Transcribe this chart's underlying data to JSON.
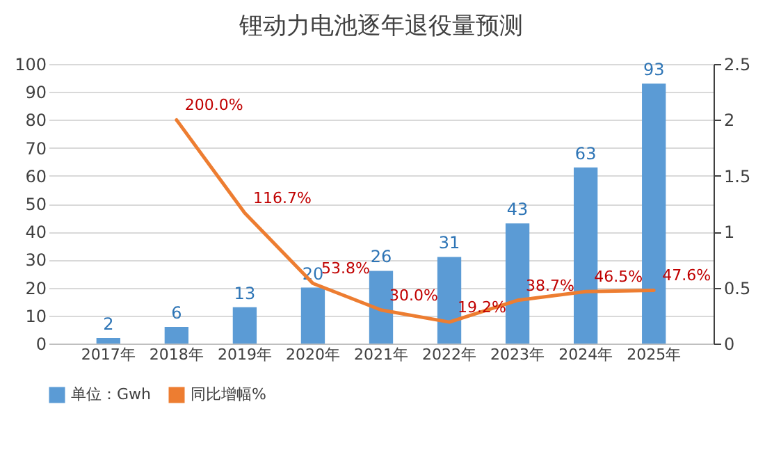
{
  "chart_data": {
    "type": "bar",
    "title": "锂动力电池逐年退役量预测",
    "categories": [
      "2017年",
      "2018年",
      "2019年",
      "2020年",
      "2021年",
      "2022年",
      "2023年",
      "2024年",
      "2025年"
    ],
    "series": [
      {
        "name": "单位：Gwh",
        "color": "#5b9bd5",
        "values": [
          2,
          6,
          13,
          20,
          26,
          31,
          43,
          63,
          93
        ],
        "value_labels": [
          "2",
          "6",
          "13",
          "20",
          "26",
          "31",
          "43",
          "63",
          "93"
        ]
      },
      {
        "name": "同比增幅%",
        "type": "line",
        "axis": "y2",
        "color": "#ed7d31",
        "values": [
          null,
          2.0,
          1.167,
          0.538,
          0.3,
          0.192,
          0.387,
          0.465,
          0.476
        ],
        "value_labels": [
          null,
          "200.0%",
          "116.7%",
          "53.8%",
          "30.0%",
          "19.2%",
          "38.7%",
          "46.5%",
          "47.6%"
        ]
      }
    ],
    "ylim": [
      0,
      100
    ],
    "yticks": [
      0,
      10,
      20,
      30,
      40,
      50,
      60,
      70,
      80,
      90,
      100
    ],
    "y2lim": [
      0,
      2.5
    ],
    "y2ticks": [
      0,
      0.5,
      1,
      1.5,
      2,
      2.5
    ],
    "grid": "y",
    "legend": "bottom"
  }
}
